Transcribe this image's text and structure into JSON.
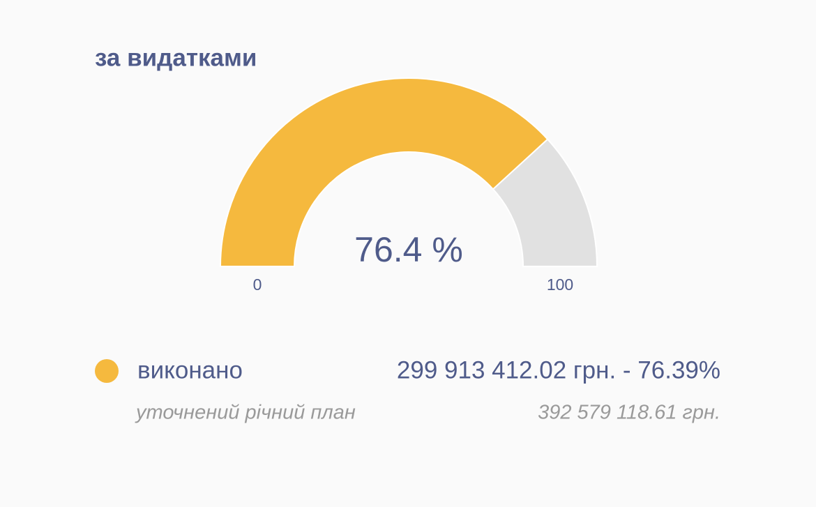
{
  "chart_data": {
    "type": "gauge",
    "title": "за видатками",
    "value": 76.4,
    "value_label": "76.4 %",
    "ylim": [
      0,
      100
    ],
    "yticks": [
      0,
      100
    ],
    "color": "#f5b93e",
    "track_color": "#e1e1e1",
    "legend": {
      "name": "виконано",
      "color": "#f5b93e",
      "text": "299 913 412.02 грн. - 76.39%"
    },
    "plan": {
      "label": "уточнений річний план",
      "text": "392 579 118.61 грн."
    }
  }
}
